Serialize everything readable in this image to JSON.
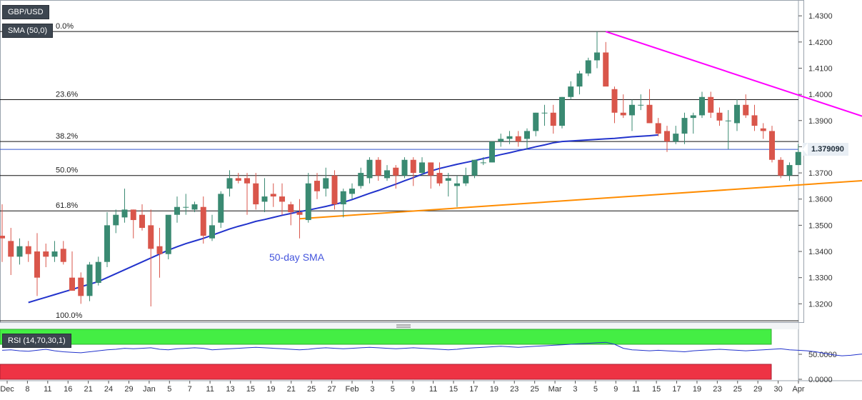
{
  "symbol": "GBP/USD",
  "sma_tag": "SMA (50,0)",
  "rsi_tag": "RSI (14,70,30,1)",
  "current_price_label": "1.379090",
  "colors": {
    "bull": "#3a8a72",
    "bear": "#d9564b",
    "sma": "#2233cc",
    "resistance": "#ff00ff",
    "support": "#ff8c00",
    "rsi_line": "#2233cc",
    "rsi_overbought": "#44ee44",
    "rsi_oversold": "#ee3344"
  },
  "chart_data": {
    "type": "candlestick",
    "y_axis_ticks": [
      "1.4300",
      "1.4200",
      "1.4100",
      "1.4000",
      "1.3900",
      "1.3800",
      "1.3700",
      "1.3600",
      "1.3500",
      "1.3400",
      "1.3300",
      "1.3200"
    ],
    "ylim": [
      1.313,
      1.4355
    ],
    "x_axis_labels": [
      "Dec",
      "8",
      "11",
      "16",
      "21",
      "24",
      "29",
      "Jan",
      "5",
      "7",
      "11",
      "13",
      "15",
      "19",
      "21",
      "25",
      "27",
      "Feb",
      "3",
      "5",
      "9",
      "11",
      "15",
      "17",
      "19",
      "23",
      "25",
      "Mar",
      "3",
      "5",
      "9",
      "11",
      "15",
      "17",
      "19",
      "23",
      "25",
      "29",
      "30",
      "Apr"
    ],
    "candles": [
      {
        "o": 1.346,
        "h": 1.358,
        "l": 1.336,
        "c": 1.345
      },
      {
        "o": 1.344,
        "h": 1.349,
        "l": 1.331,
        "c": 1.338
      },
      {
        "o": 1.338,
        "h": 1.345,
        "l": 1.335,
        "c": 1.342
      },
      {
        "o": 1.342,
        "h": 1.344,
        "l": 1.336,
        "c": 1.339
      },
      {
        "o": 1.34,
        "h": 1.347,
        "l": 1.323,
        "c": 1.33
      },
      {
        "o": 1.34,
        "h": 1.343,
        "l": 1.334,
        "c": 1.338
      },
      {
        "o": 1.338,
        "h": 1.344,
        "l": 1.336,
        "c": 1.34
      },
      {
        "o": 1.341,
        "h": 1.344,
        "l": 1.335,
        "c": 1.336
      },
      {
        "o": 1.33,
        "h": 1.34,
        "l": 1.325,
        "c": 1.325
      },
      {
        "o": 1.33,
        "h": 1.332,
        "l": 1.32,
        "c": 1.323
      },
      {
        "o": 1.323,
        "h": 1.336,
        "l": 1.321,
        "c": 1.335
      },
      {
        "o": 1.328,
        "h": 1.338,
        "l": 1.327,
        "c": 1.336
      },
      {
        "o": 1.336,
        "h": 1.355,
        "l": 1.334,
        "c": 1.35
      },
      {
        "o": 1.35,
        "h": 1.356,
        "l": 1.347,
        "c": 1.354
      },
      {
        "o": 1.353,
        "h": 1.364,
        "l": 1.351,
        "c": 1.356
      },
      {
        "o": 1.356,
        "h": 1.356,
        "l": 1.345,
        "c": 1.352
      },
      {
        "o": 1.354,
        "h": 1.358,
        "l": 1.348,
        "c": 1.349
      },
      {
        "o": 1.35,
        "h": 1.356,
        "l": 1.319,
        "c": 1.341
      },
      {
        "o": 1.342,
        "h": 1.349,
        "l": 1.33,
        "c": 1.339
      },
      {
        "o": 1.339,
        "h": 1.353,
        "l": 1.337,
        "c": 1.354
      },
      {
        "o": 1.354,
        "h": 1.361,
        "l": 1.351,
        "c": 1.357
      },
      {
        "o": 1.357,
        "h": 1.362,
        "l": 1.354,
        "c": 1.357
      },
      {
        "o": 1.356,
        "h": 1.359,
        "l": 1.355,
        "c": 1.358
      },
      {
        "o": 1.357,
        "h": 1.361,
        "l": 1.343,
        "c": 1.346
      },
      {
        "o": 1.345,
        "h": 1.354,
        "l": 1.344,
        "c": 1.35
      },
      {
        "o": 1.351,
        "h": 1.363,
        "l": 1.349,
        "c": 1.362
      },
      {
        "o": 1.364,
        "h": 1.371,
        "l": 1.361,
        "c": 1.368
      },
      {
        "o": 1.368,
        "h": 1.37,
        "l": 1.366,
        "c": 1.367
      },
      {
        "o": 1.368,
        "h": 1.37,
        "l": 1.354,
        "c": 1.366
      },
      {
        "o": 1.366,
        "h": 1.37,
        "l": 1.356,
        "c": 1.358
      },
      {
        "o": 1.359,
        "h": 1.368,
        "l": 1.355,
        "c": 1.361
      },
      {
        "o": 1.362,
        "h": 1.366,
        "l": 1.357,
        "c": 1.361
      },
      {
        "o": 1.361,
        "h": 1.366,
        "l": 1.354,
        "c": 1.359
      },
      {
        "o": 1.358,
        "h": 1.359,
        "l": 1.35,
        "c": 1.355
      },
      {
        "o": 1.355,
        "h": 1.36,
        "l": 1.345,
        "c": 1.354
      },
      {
        "o": 1.352,
        "h": 1.37,
        "l": 1.351,
        "c": 1.366
      },
      {
        "o": 1.367,
        "h": 1.37,
        "l": 1.36,
        "c": 1.363
      },
      {
        "o": 1.364,
        "h": 1.372,
        "l": 1.361,
        "c": 1.368
      },
      {
        "o": 1.369,
        "h": 1.371,
        "l": 1.356,
        "c": 1.358
      },
      {
        "o": 1.358,
        "h": 1.364,
        "l": 1.353,
        "c": 1.363
      },
      {
        "o": 1.362,
        "h": 1.366,
        "l": 1.36,
        "c": 1.364
      },
      {
        "o": 1.365,
        "h": 1.372,
        "l": 1.364,
        "c": 1.37
      },
      {
        "o": 1.368,
        "h": 1.376,
        "l": 1.366,
        "c": 1.375
      },
      {
        "o": 1.375,
        "h": 1.376,
        "l": 1.367,
        "c": 1.369
      },
      {
        "o": 1.368,
        "h": 1.373,
        "l": 1.367,
        "c": 1.371
      },
      {
        "o": 1.372,
        "h": 1.373,
        "l": 1.364,
        "c": 1.369
      },
      {
        "o": 1.369,
        "h": 1.376,
        "l": 1.368,
        "c": 1.375
      },
      {
        "o": 1.375,
        "h": 1.376,
        "l": 1.365,
        "c": 1.37
      },
      {
        "o": 1.37,
        "h": 1.376,
        "l": 1.369,
        "c": 1.374
      },
      {
        "o": 1.374,
        "h": 1.374,
        "l": 1.364,
        "c": 1.369
      },
      {
        "o": 1.37,
        "h": 1.374,
        "l": 1.365,
        "c": 1.366
      },
      {
        "o": 1.367,
        "h": 1.37,
        "l": 1.361,
        "c": 1.368
      },
      {
        "o": 1.365,
        "h": 1.369,
        "l": 1.357,
        "c": 1.366
      },
      {
        "o": 1.366,
        "h": 1.372,
        "l": 1.365,
        "c": 1.369
      },
      {
        "o": 1.369,
        "h": 1.375,
        "l": 1.368,
        "c": 1.375
      },
      {
        "o": 1.374,
        "h": 1.376,
        "l": 1.373,
        "c": 1.374
      },
      {
        "o": 1.374,
        "h": 1.382,
        "l": 1.374,
        "c": 1.382
      },
      {
        "o": 1.382,
        "h": 1.385,
        "l": 1.38,
        "c": 1.383
      },
      {
        "o": 1.383,
        "h": 1.386,
        "l": 1.381,
        "c": 1.384
      },
      {
        "o": 1.384,
        "h": 1.386,
        "l": 1.38,
        "c": 1.382
      },
      {
        "o": 1.383,
        "h": 1.387,
        "l": 1.379,
        "c": 1.386
      },
      {
        "o": 1.386,
        "h": 1.393,
        "l": 1.384,
        "c": 1.393
      },
      {
        "o": 1.393,
        "h": 1.396,
        "l": 1.388,
        "c": 1.393
      },
      {
        "o": 1.393,
        "h": 1.396,
        "l": 1.385,
        "c": 1.388
      },
      {
        "o": 1.388,
        "h": 1.399,
        "l": 1.387,
        "c": 1.399
      },
      {
        "o": 1.399,
        "h": 1.405,
        "l": 1.398,
        "c": 1.403
      },
      {
        "o": 1.403,
        "h": 1.409,
        "l": 1.4,
        "c": 1.408
      },
      {
        "o": 1.408,
        "h": 1.414,
        "l": 1.407,
        "c": 1.413
      },
      {
        "o": 1.413,
        "h": 1.424,
        "l": 1.41,
        "c": 1.416
      },
      {
        "o": 1.416,
        "h": 1.42,
        "l": 1.404,
        "c": 1.403
      },
      {
        "o": 1.402,
        "h": 1.403,
        "l": 1.389,
        "c": 1.393
      },
      {
        "o": 1.393,
        "h": 1.4,
        "l": 1.391,
        "c": 1.392
      },
      {
        "o": 1.392,
        "h": 1.398,
        "l": 1.386,
        "c": 1.396
      },
      {
        "o": 1.396,
        "h": 1.4,
        "l": 1.394,
        "c": 1.396
      },
      {
        "o": 1.396,
        "h": 1.402,
        "l": 1.389,
        "c": 1.389
      },
      {
        "o": 1.389,
        "h": 1.391,
        "l": 1.384,
        "c": 1.385
      },
      {
        "o": 1.386,
        "h": 1.388,
        "l": 1.378,
        "c": 1.382
      },
      {
        "o": 1.382,
        "h": 1.388,
        "l": 1.381,
        "c": 1.385
      },
      {
        "o": 1.385,
        "h": 1.393,
        "l": 1.381,
        "c": 1.391
      },
      {
        "o": 1.391,
        "h": 1.393,
        "l": 1.385,
        "c": 1.392
      },
      {
        "o": 1.392,
        "h": 1.401,
        "l": 1.391,
        "c": 1.399
      },
      {
        "o": 1.399,
        "h": 1.401,
        "l": 1.391,
        "c": 1.393
      },
      {
        "o": 1.393,
        "h": 1.395,
        "l": 1.388,
        "c": 1.39
      },
      {
        "o": 1.39,
        "h": 1.394,
        "l": 1.379,
        "c": 1.39
      },
      {
        "o": 1.389,
        "h": 1.398,
        "l": 1.386,
        "c": 1.396
      },
      {
        "o": 1.396,
        "h": 1.4,
        "l": 1.391,
        "c": 1.392
      },
      {
        "o": 1.392,
        "h": 1.396,
        "l": 1.386,
        "c": 1.388
      },
      {
        "o": 1.387,
        "h": 1.389,
        "l": 1.383,
        "c": 1.386
      },
      {
        "o": 1.386,
        "h": 1.388,
        "l": 1.374,
        "c": 1.375
      },
      {
        "o": 1.375,
        "h": 1.376,
        "l": 1.368,
        "c": 1.369
      },
      {
        "o": 1.369,
        "h": 1.374,
        "l": 1.367,
        "c": 1.373
      },
      {
        "o": 1.373,
        "h": 1.381,
        "l": 1.373,
        "c": 1.378
      },
      {
        "o": 1.379,
        "h": 1.38,
        "l": 1.378,
        "c": 1.379
      },
      {
        "o": 1.379,
        "h": 1.38,
        "l": 1.378,
        "c": 1.379
      }
    ],
    "sma_50": [
      1.3205,
      1.3215,
      1.3225,
      1.3235,
      1.3245,
      1.3255,
      1.3265,
      1.3275,
      1.3285,
      1.33,
      1.3315,
      1.333,
      1.3345,
      1.336,
      1.3375,
      1.339,
      1.3405,
      1.3418,
      1.343,
      1.344,
      1.345,
      1.3462,
      1.3474,
      1.3486,
      1.3496,
      1.3505,
      1.3515,
      1.3522,
      1.353,
      1.3538,
      1.3545,
      1.3552,
      1.3558,
      1.3565,
      1.3572,
      1.358,
      1.3588,
      1.3598,
      1.361,
      1.3622,
      1.3633,
      1.3645,
      1.3657,
      1.367,
      1.3682,
      1.3695,
      1.3707,
      1.3717,
      1.3725,
      1.3733,
      1.374,
      1.3747,
      1.3755,
      1.3762,
      1.377,
      1.3777,
      1.3785,
      1.3792,
      1.38,
      1.3807,
      1.3815,
      1.382,
      1.3822,
      1.3824,
      1.3826,
      1.3828,
      1.383,
      1.3832,
      1.3835,
      1.3838,
      1.384,
      1.3842,
      1.3845
    ],
    "fibonacci": [
      {
        "label": "0.0%",
        "value": 1.424
      },
      {
        "label": "23.6%",
        "value": 1.398
      },
      {
        "label": "38.2%",
        "value": 1.382
      },
      {
        "label": "50.0%",
        "value": 1.369
      },
      {
        "label": "61.8%",
        "value": 1.3555
      },
      {
        "label": "100.0%",
        "value": 1.3135
      }
    ],
    "resistance_line": {
      "from": {
        "index": 69,
        "value": 1.424
      },
      "to": {
        "index": 103,
        "value": 1.3865
      }
    },
    "support_line": {
      "from": {
        "index": 34,
        "value": 1.3525
      },
      "to": {
        "index": 107,
        "value": 1.369
      }
    },
    "sma_label": "50-day SMA",
    "rsi": {
      "ticks": [
        "50.0000",
        "0.0000"
      ],
      "ylim": [
        0,
        100
      ],
      "overbought": 70,
      "oversold": 30,
      "values": [
        58,
        59,
        57,
        56,
        58,
        60,
        57,
        55,
        54,
        53,
        55,
        57,
        59,
        60,
        62,
        61,
        62,
        63,
        60,
        59,
        61,
        62,
        63,
        62,
        59,
        60,
        61,
        62,
        63,
        64,
        63,
        62,
        61,
        60,
        59,
        60,
        62,
        63,
        62,
        61,
        62,
        63,
        64,
        63,
        62,
        61,
        62,
        63,
        62,
        61,
        60,
        59,
        60,
        62,
        63,
        64,
        65,
        66,
        65,
        64,
        65,
        66,
        67,
        68,
        69,
        70,
        71,
        72,
        73,
        74,
        70,
        62,
        59,
        58,
        57,
        58,
        57,
        56,
        55,
        57,
        58,
        59,
        60,
        59,
        58,
        57,
        58,
        59,
        60,
        61,
        59,
        58,
        57,
        55,
        52,
        49,
        47,
        48,
        50,
        51,
        51,
        51
      ]
    }
  }
}
